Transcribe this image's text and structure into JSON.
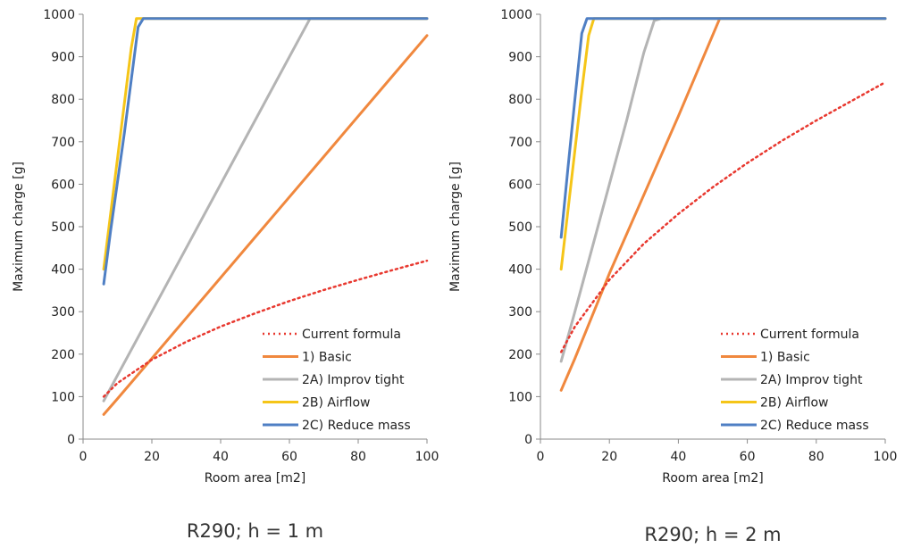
{
  "colors": {
    "current_formula": "#e8382f",
    "basic": "#f0883e",
    "improv_tight": "#b4b4b4",
    "airflow": "#f5c518",
    "reduce_mass": "#4f7fc4"
  },
  "chart_data": [
    {
      "type": "line",
      "caption": "R290; h = 1 m",
      "xlabel": "Room area [m2]",
      "ylabel": "Maximum charge [g]",
      "xlim": [
        0,
        100
      ],
      "ylim": [
        0,
        1000
      ],
      "xticks": [
        0,
        20,
        40,
        60,
        80,
        100
      ],
      "yticks": [
        0,
        100,
        200,
        300,
        400,
        500,
        600,
        700,
        800,
        900,
        1000
      ],
      "grid": false,
      "legend_position": "bottom-right",
      "series": [
        {
          "name": "Current formula",
          "style": "dotted",
          "color_key": "current_formula",
          "x": [
            6,
            10,
            20,
            30,
            40,
            50,
            60,
            70,
            80,
            90,
            100
          ],
          "y": [
            100,
            132,
            187,
            229,
            265,
            296,
            325,
            351,
            375,
            398,
            420
          ]
        },
        {
          "name": "1) Basic",
          "style": "solid",
          "color_key": "basic",
          "x": [
            6,
            10,
            20,
            30,
            40,
            50,
            60,
            70,
            80,
            90,
            100
          ],
          "y": [
            58,
            95,
            190,
            285,
            380,
            475,
            570,
            665,
            760,
            855,
            950
          ]
        },
        {
          "name": "2A) Improv tight",
          "style": "solid",
          "color_key": "improv_tight",
          "x": [
            6,
            10,
            20,
            30,
            40,
            50,
            60,
            66,
            100
          ],
          "y": [
            90,
            150,
            300,
            450,
            600,
            750,
            900,
            990,
            990
          ]
        },
        {
          "name": "2B) Airflow",
          "style": "solid",
          "color_key": "airflow",
          "x": [
            6,
            8,
            10,
            12,
            14,
            15.5,
            100
          ],
          "y": [
            400,
            530,
            660,
            790,
            920,
            990,
            990
          ]
        },
        {
          "name": "2C) Reduce mass",
          "style": "solid",
          "color_key": "reduce_mass",
          "x": [
            6,
            8,
            10,
            12,
            14,
            16,
            17.5,
            100
          ],
          "y": [
            365,
            490,
            605,
            720,
            845,
            970,
            990,
            990
          ]
        }
      ]
    },
    {
      "type": "line",
      "caption": "R290; h = 2 m",
      "xlabel": "Room area [m2]",
      "ylabel": "Maximum charge [g]",
      "xlim": [
        0,
        100
      ],
      "ylim": [
        0,
        1000
      ],
      "xticks": [
        0,
        20,
        40,
        60,
        80,
        100
      ],
      "yticks": [
        0,
        100,
        200,
        300,
        400,
        500,
        600,
        700,
        800,
        900,
        1000
      ],
      "grid": false,
      "legend_position": "bottom-right",
      "series": [
        {
          "name": "Current formula",
          "style": "dotted",
          "color_key": "current_formula",
          "x": [
            6,
            10,
            20,
            30,
            40,
            50,
            60,
            70,
            80,
            90,
            100
          ],
          "y": [
            205,
            265,
            375,
            460,
            530,
            593,
            650,
            702,
            750,
            795,
            840
          ]
        },
        {
          "name": "1) Basic",
          "style": "solid",
          "color_key": "basic",
          "x": [
            6,
            10,
            20,
            30,
            40,
            52,
            100
          ],
          "y": [
            115,
            190,
            390,
            575,
            760,
            990,
            990
          ]
        },
        {
          "name": "2A) Improv tight",
          "style": "solid",
          "color_key": "improv_tight",
          "x": [
            6,
            10,
            15,
            20,
            25,
            30,
            33,
            35,
            100
          ],
          "y": [
            183,
            300,
            450,
            600,
            750,
            910,
            985,
            990,
            990
          ]
        },
        {
          "name": "2B) Airflow",
          "style": "solid",
          "color_key": "airflow",
          "x": [
            6,
            8,
            10,
            12,
            14,
            15.5,
            100
          ],
          "y": [
            400,
            540,
            680,
            820,
            950,
            990,
            990
          ]
        },
        {
          "name": "2C) Reduce mass",
          "style": "solid",
          "color_key": "reduce_mass",
          "x": [
            6,
            8,
            10,
            12,
            13.5,
            100
          ],
          "y": [
            475,
            640,
            800,
            955,
            990,
            990
          ]
        }
      ]
    }
  ]
}
